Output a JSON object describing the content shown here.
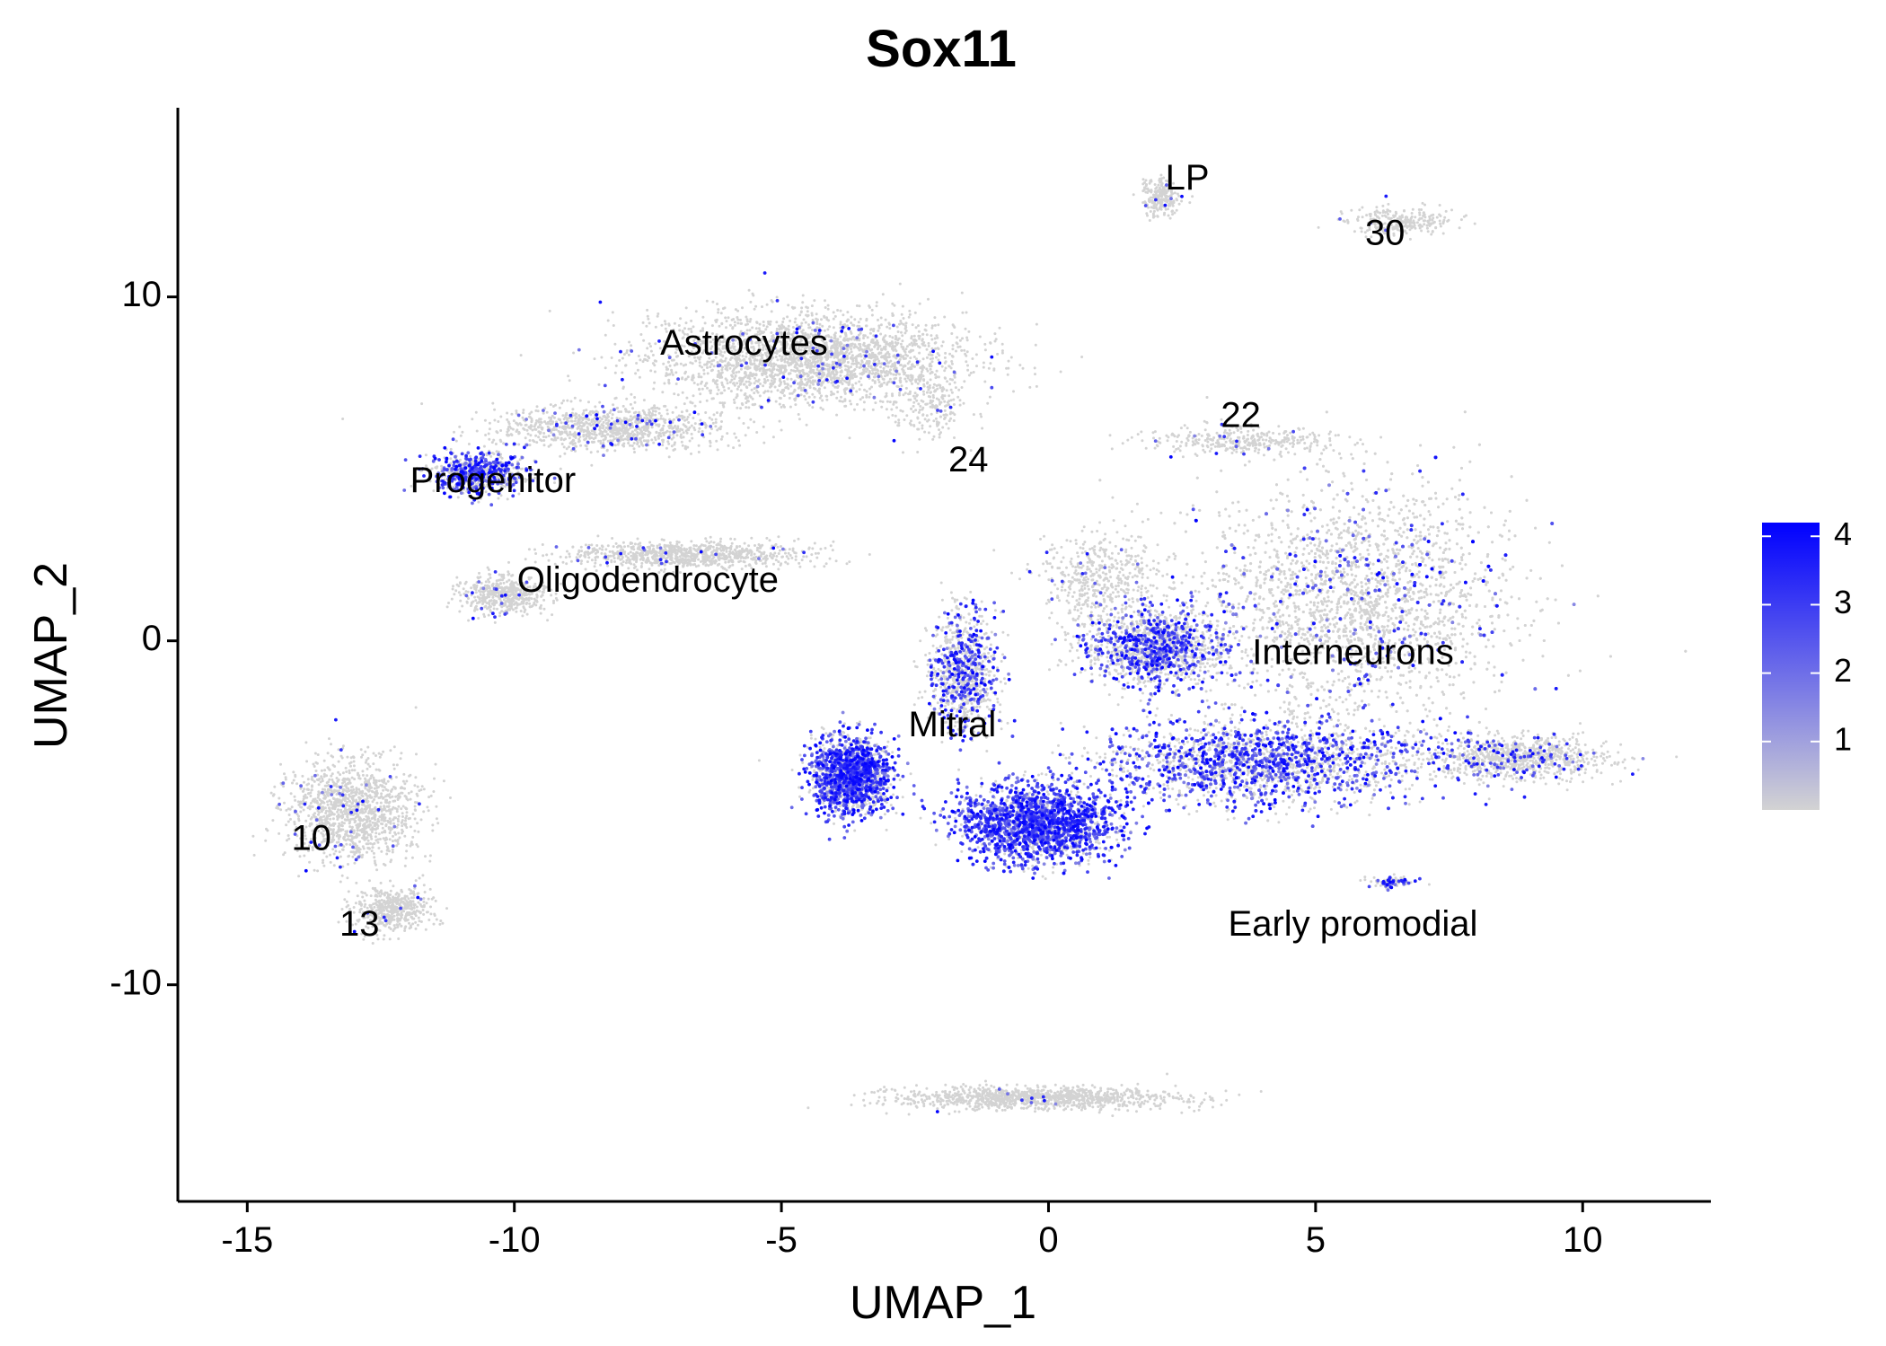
{
  "chart_data": {
    "type": "scatter",
    "title": "Sox11",
    "xlabel": "UMAP_1",
    "ylabel": "UMAP_2",
    "xlim": [
      -16.3,
      12.4
    ],
    "ylim": [
      -16.3,
      15.5
    ],
    "xticks": [
      -15,
      -10,
      -5,
      0,
      5,
      10
    ],
    "yticks": [
      -10,
      0,
      10
    ],
    "grid": false,
    "low_color": "#d3d3d3",
    "high_color": "#0000ff",
    "legend": {
      "position": "right",
      "min": 0,
      "max": 4.2,
      "ticks": [
        1,
        2,
        3,
        4
      ]
    },
    "cluster_labels": [
      {
        "text": "LP",
        "x": 2.6,
        "y": 13.4
      },
      {
        "text": "30",
        "x": 6.3,
        "y": 11.8
      },
      {
        "text": "Astrocytes",
        "x": -5.7,
        "y": 8.6
      },
      {
        "text": "22",
        "x": 3.6,
        "y": 6.5
      },
      {
        "text": "24",
        "x": -1.5,
        "y": 5.2
      },
      {
        "text": "Progenitor",
        "x": -10.4,
        "y": 4.6
      },
      {
        "text": "Oligodendrocyte",
        "x": -7.5,
        "y": 1.7
      },
      {
        "text": "Interneurons",
        "x": 5.7,
        "y": -0.4
      },
      {
        "text": "Mitral",
        "x": -1.8,
        "y": -2.5
      },
      {
        "text": "10",
        "x": -13.8,
        "y": -5.8
      },
      {
        "text": "13",
        "x": -12.9,
        "y": -8.3
      },
      {
        "text": "Early promodial",
        "x": 5.7,
        "y": -8.3
      }
    ],
    "clusters": [
      {
        "label": "Astrocytes",
        "cx": -4.5,
        "cy": 8.2,
        "sx": 2.6,
        "sy": 1.2,
        "n": 2600,
        "expr": 0.03
      },
      {
        "label": "Astrocyte arm",
        "cx": -8.2,
        "cy": 6.2,
        "sx": 1.9,
        "sy": 0.6,
        "n": 1000,
        "expr": 0.05
      },
      {
        "label": "Progenitor",
        "cx": -10.7,
        "cy": 4.9,
        "sx": 0.8,
        "sy": 0.55,
        "n": 700,
        "expr": 0.45
      },
      {
        "label": "Oligodendrocyte",
        "cx": -10.2,
        "cy": 1.3,
        "sx": 0.7,
        "sy": 0.5,
        "n": 500,
        "expr": 0.02
      },
      {
        "label": "Oligodendrocyte band",
        "cx": -6.8,
        "cy": 2.5,
        "sx": 2.0,
        "sy": 0.35,
        "n": 900,
        "expr": 0.02
      },
      {
        "label": "24",
        "cx": -2.2,
        "cy": 6.8,
        "sx": 0.6,
        "sy": 0.9,
        "n": 180,
        "expr": 0.02
      },
      {
        "label": "LP",
        "cx": 2.1,
        "cy": 12.9,
        "sx": 0.3,
        "sy": 0.5,
        "n": 220,
        "expr": 0.03
      },
      {
        "label": "30",
        "cx": 6.6,
        "cy": 12.2,
        "sx": 0.9,
        "sy": 0.35,
        "n": 250,
        "expr": 0.01
      },
      {
        "label": "22",
        "cx": 3.6,
        "cy": 5.8,
        "sx": 1.6,
        "sy": 0.35,
        "n": 350,
        "expr": 0.02
      },
      {
        "label": "Interneurons",
        "cx": 5.8,
        "cy": 1.2,
        "sx": 2.6,
        "sy": 3.0,
        "n": 5200,
        "expr": 0.1
      },
      {
        "label": "Interneurons lower",
        "cx": 4.0,
        "cy": -3.5,
        "sx": 2.8,
        "sy": 1.1,
        "n": 2600,
        "expr": 0.45
      },
      {
        "label": "Interneurons upper",
        "cx": 2.0,
        "cy": -0.2,
        "sx": 1.2,
        "sy": 1.0,
        "n": 1400,
        "expr": 0.35
      },
      {
        "label": "Interneurons tail",
        "cx": 8.8,
        "cy": -3.4,
        "sx": 1.5,
        "sy": 0.55,
        "n": 900,
        "expr": 0.12
      },
      {
        "label": "Mitral",
        "cx": -3.7,
        "cy": -3.9,
        "sx": 0.65,
        "sy": 1.0,
        "n": 1600,
        "expr": 0.6
      },
      {
        "label": "Mitral stem",
        "cx": -1.6,
        "cy": -0.9,
        "sx": 0.55,
        "sy": 1.5,
        "n": 900,
        "expr": 0.3
      },
      {
        "label": "Mitral base",
        "cx": -0.2,
        "cy": -5.3,
        "sx": 1.3,
        "sy": 1.0,
        "n": 2000,
        "expr": 0.75
      },
      {
        "label": "Center bridge",
        "cx": 1.0,
        "cy": 1.8,
        "sx": 1.0,
        "sy": 1.2,
        "n": 500,
        "expr": 0.05
      },
      {
        "label": "10",
        "cx": -13.0,
        "cy": -5.0,
        "sx": 1.1,
        "sy": 1.3,
        "n": 1300,
        "expr": 0.02
      },
      {
        "label": "13",
        "cx": -12.3,
        "cy": -7.8,
        "sx": 0.6,
        "sy": 0.6,
        "n": 500,
        "expr": 0.02
      },
      {
        "label": "Early promodial",
        "cx": 6.4,
        "cy": -7.0,
        "sx": 0.4,
        "sy": 0.15,
        "n": 90,
        "expr": 0.4
      },
      {
        "label": "Bottom band",
        "cx": -0.2,
        "cy": -13.3,
        "sx": 2.3,
        "sy": 0.3,
        "n": 1100,
        "expr": 0.01
      }
    ]
  }
}
